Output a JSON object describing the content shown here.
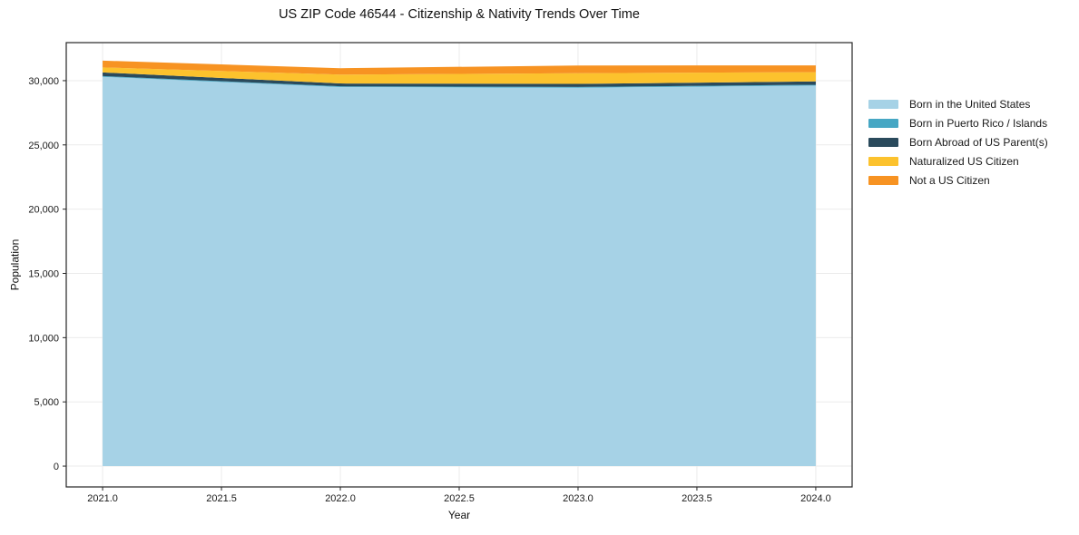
{
  "chart_data": {
    "type": "area",
    "stacked": true,
    "title": "US ZIP Code 46544 - Citizenship & Nativity Trends Over Time",
    "xlabel": "Year",
    "ylabel": "Population",
    "x": [
      2021,
      2022,
      2023,
      2024
    ],
    "series": [
      {
        "name": "Born in the United States",
        "color": "#a6d2e6",
        "values": [
          30300,
          29500,
          29450,
          29620
        ]
      },
      {
        "name": "Born in Puerto Rico / Islands",
        "color": "#46a7c4",
        "values": [
          60,
          60,
          60,
          60
        ]
      },
      {
        "name": "Born Abroad of US Parent(s)",
        "color": "#2a4a5c",
        "values": [
          280,
          220,
          240,
          260
        ]
      },
      {
        "name": "Naturalized US Citizen",
        "color": "#fcc22d",
        "values": [
          390,
          690,
          830,
          720
        ]
      },
      {
        "name": "Not a US Citizen",
        "color": "#f79322",
        "values": [
          530,
          500,
          600,
          530
        ]
      }
    ],
    "totals": [
      31560,
      30970,
      31180,
      31190
    ],
    "xticks": {
      "values": [
        2021.0,
        2021.5,
        2022.0,
        2022.5,
        2023.0,
        2023.5,
        2024.0
      ],
      "labels": [
        "2021.0",
        "2021.5",
        "2022.0",
        "2022.5",
        "2023.0",
        "2023.5",
        "2024.0"
      ]
    },
    "yticks": {
      "values": [
        0,
        5000,
        10000,
        15000,
        20000,
        25000,
        30000
      ],
      "labels": [
        "0",
        "5,000",
        "10,000",
        "15,000",
        "20,000",
        "25,000",
        "30,000"
      ]
    },
    "xlim": [
      2020.847,
      2024.153
    ],
    "ylim": [
      -1620,
      32960
    ],
    "grid": true,
    "grid_color": "#ebebeb",
    "spine_color": "#262626",
    "legend_position": "right outside"
  }
}
